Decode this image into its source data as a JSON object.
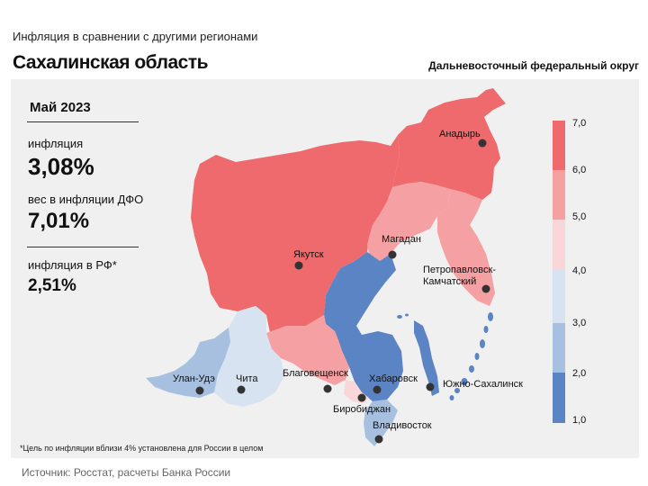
{
  "header": {
    "subtitle": "Инфляция  в сравнении  с другими  регионами",
    "title": "Сахалинская область",
    "district": "Дальневосточный федеральный округ"
  },
  "info": {
    "month": "Май 2023",
    "inflation_label": "инфляция",
    "inflation_value": "3,08%",
    "weight_label": "вес в инфляции  ДФО",
    "weight_value": "7,01%",
    "rf_label": "инфляция  в РФ*",
    "rf_value": "2,51%"
  },
  "legend": {
    "ticks": [
      "7,0",
      "6,0",
      "5,0",
      "4,0",
      "3,0",
      "2,0",
      "1,0"
    ],
    "colors": [
      "#ef6a6c",
      "#f5a0a2",
      "#f9d6d7",
      "#d8e3f1",
      "#a7c0e0",
      "#5a84c3"
    ]
  },
  "map": {
    "cities": [
      {
        "name": "Анадырь"
      },
      {
        "name": "Якутск"
      },
      {
        "name": "Магадан"
      },
      {
        "name": "Петропавловск-"
      },
      {
        "name": "Камчатский"
      },
      {
        "name": "Благовещенск"
      },
      {
        "name": "Хабаровск"
      },
      {
        "name": "Южно-Сахалинск"
      },
      {
        "name": "Биробиджан"
      },
      {
        "name": "Владивосток"
      },
      {
        "name": "Улан-Удэ"
      },
      {
        "name": "Чита"
      }
    ]
  },
  "footnote": "*Цель по инфляции вблизи 4% установлена для России в целом",
  "source": "Источник:  Росстат,  расчеты Банка  России"
}
